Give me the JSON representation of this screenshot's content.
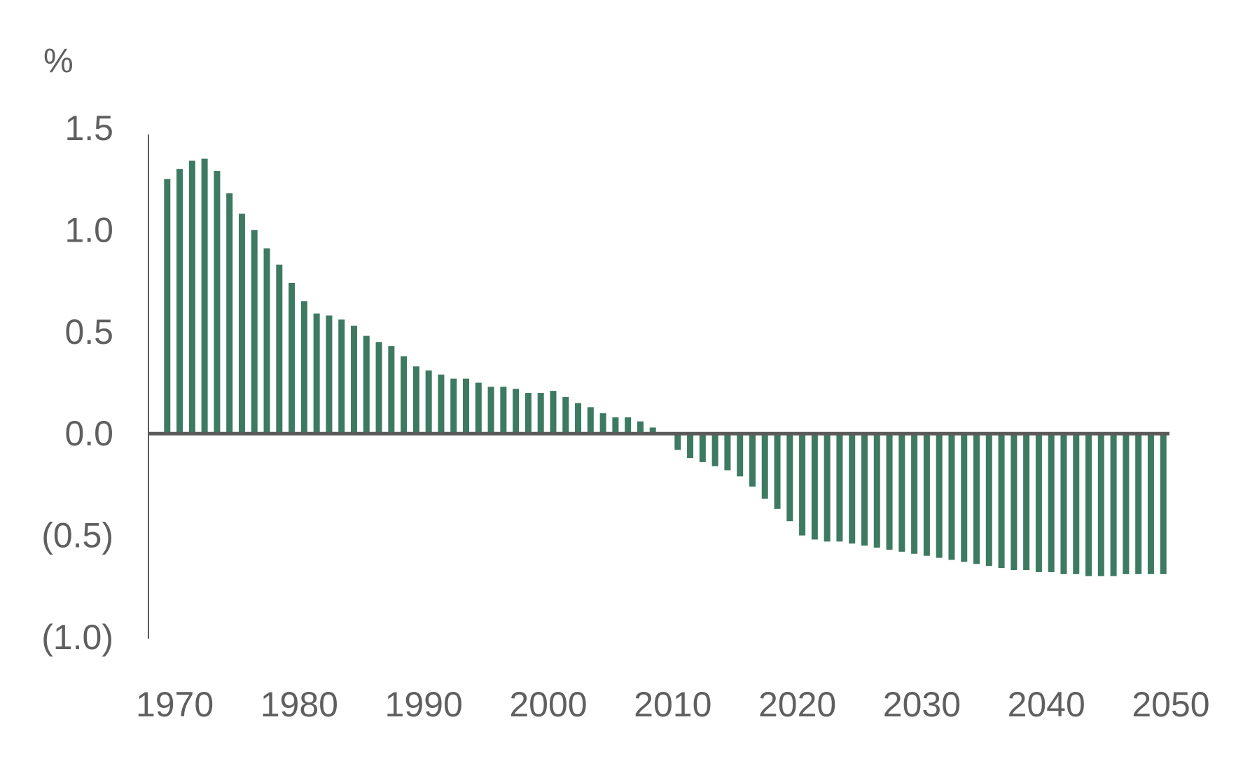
{
  "chart_data": {
    "type": "bar",
    "title": "",
    "xlabel": "",
    "ylabel": "%",
    "x": [
      1969,
      1970,
      1971,
      1972,
      1973,
      1974,
      1975,
      1976,
      1977,
      1978,
      1979,
      1980,
      1981,
      1982,
      1983,
      1984,
      1985,
      1986,
      1987,
      1988,
      1989,
      1990,
      1991,
      1992,
      1993,
      1994,
      1995,
      1996,
      1997,
      1998,
      1999,
      2000,
      2001,
      2002,
      2003,
      2004,
      2005,
      2006,
      2007,
      2008,
      2009,
      2010,
      2011,
      2012,
      2013,
      2014,
      2015,
      2016,
      2017,
      2018,
      2019,
      2020,
      2021,
      2022,
      2023,
      2024,
      2025,
      2026,
      2027,
      2028,
      2029,
      2030,
      2031,
      2032,
      2033,
      2034,
      2035,
      2036,
      2037,
      2038,
      2039,
      2040,
      2041,
      2042,
      2043,
      2044,
      2045,
      2046,
      2047,
      2048,
      2049
    ],
    "values": [
      1.25,
      1.3,
      1.34,
      1.35,
      1.29,
      1.18,
      1.08,
      1.0,
      0.91,
      0.83,
      0.74,
      0.65,
      0.59,
      0.58,
      0.56,
      0.53,
      0.48,
      0.45,
      0.43,
      0.38,
      0.33,
      0.31,
      0.29,
      0.27,
      0.27,
      0.25,
      0.23,
      0.23,
      0.22,
      0.2,
      0.2,
      0.21,
      0.18,
      0.15,
      0.13,
      0.1,
      0.08,
      0.08,
      0.06,
      0.03,
      0.0,
      -0.08,
      -0.12,
      -0.14,
      -0.16,
      -0.18,
      -0.21,
      -0.26,
      -0.32,
      -0.37,
      -0.43,
      -0.5,
      -0.52,
      -0.53,
      -0.53,
      -0.54,
      -0.55,
      -0.56,
      -0.57,
      -0.58,
      -0.59,
      -0.6,
      -0.61,
      -0.62,
      -0.63,
      -0.64,
      -0.65,
      -0.66,
      -0.67,
      -0.67,
      -0.68,
      -0.68,
      -0.69,
      -0.69,
      -0.7,
      -0.7,
      -0.7,
      -0.69,
      -0.69,
      -0.69,
      -0.69
    ],
    "ylim": [
      -1.0,
      1.5
    ],
    "xlim": [
      1968,
      2050
    ],
    "y_ticks": [
      {
        "value": 1.5,
        "label": "1.5"
      },
      {
        "value": 1.0,
        "label": "1.0"
      },
      {
        "value": 0.5,
        "label": "0.5"
      },
      {
        "value": 0.0,
        "label": "0.0"
      },
      {
        "value": -0.5,
        "label": "(0.5)"
      },
      {
        "value": -1.0,
        "label": "(1.0)"
      }
    ],
    "x_ticks": [
      {
        "value": 1970,
        "label": "1970"
      },
      {
        "value": 1980,
        "label": "1980"
      },
      {
        "value": 1990,
        "label": "1990"
      },
      {
        "value": 2000,
        "label": "2000"
      },
      {
        "value": 2010,
        "label": "2010"
      },
      {
        "value": 2020,
        "label": "2020"
      },
      {
        "value": 2030,
        "label": "2030"
      },
      {
        "value": 2040,
        "label": "2040"
      },
      {
        "value": 2050,
        "label": "2050"
      }
    ],
    "grid": false,
    "legend": "none",
    "colors": {
      "bar": "#3d7a62",
      "axis": "#5a5a5a",
      "text": "#5f5f5f"
    }
  }
}
